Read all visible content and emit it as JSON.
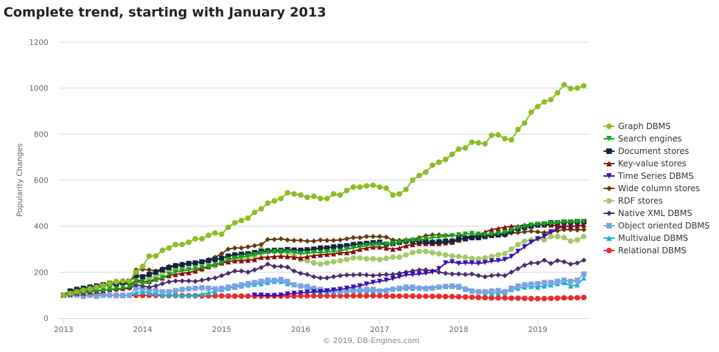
{
  "title": "Complete trend, starting with January 2013",
  "credits": "© 2019, DB-Engines.com",
  "chart_data": {
    "type": "line",
    "title": "Complete trend, starting with January 2013",
    "xlabel": "",
    "ylabel": "Popularity Changes",
    "x_start": "2013-01",
    "x_step": "month",
    "x_ticks": [
      "2013",
      "2014",
      "2015",
      "2016",
      "2017",
      "2018",
      "2019"
    ],
    "y_ticks": [
      0,
      200,
      400,
      600,
      800,
      1000,
      1200
    ],
    "ylim": [
      0,
      1200
    ],
    "grid": "horizontal",
    "legend_position": "right",
    "series": [
      {
        "name": "Graph DBMS",
        "color": "#8cbd23",
        "marker": "circle",
        "values": [
          100,
          108,
          115,
          122,
          128,
          135,
          142,
          150,
          158,
          162,
          160,
          200,
          225,
          270,
          270,
          295,
          305,
          320,
          320,
          330,
          345,
          345,
          360,
          370,
          365,
          395,
          415,
          425,
          435,
          460,
          475,
          500,
          510,
          520,
          545,
          540,
          535,
          525,
          530,
          520,
          520,
          540,
          535,
          555,
          570,
          570,
          575,
          578,
          570,
          565,
          535,
          540,
          560,
          600,
          620,
          635,
          665,
          678,
          690,
          712,
          735,
          740,
          765,
          762,
          758,
          795,
          797,
          780,
          775,
          820,
          848,
          895,
          920,
          940,
          950,
          980,
          1015,
          998,
          1000,
          1010
        ]
      },
      {
        "name": "Search engines",
        "color": "#1aa31a",
        "marker": "triangle-down",
        "values": [
          100,
          105,
          110,
          112,
          115,
          118,
          120,
          125,
          128,
          130,
          135,
          160,
          150,
          155,
          165,
          175,
          190,
          200,
          205,
          210,
          215,
          220,
          225,
          230,
          240,
          255,
          260,
          265,
          270,
          275,
          280,
          285,
          290,
          290,
          288,
          285,
          280,
          282,
          285,
          285,
          288,
          290,
          292,
          300,
          305,
          310,
          315,
          318,
          320,
          322,
          325,
          330,
          335,
          338,
          340,
          345,
          350,
          352,
          355,
          358,
          362,
          365,
          368,
          365,
          362,
          365,
          368,
          372,
          382,
          392,
          398,
          405,
          408,
          410,
          412,
          415,
          418,
          418,
          420,
          420
        ]
      },
      {
        "name": "Document stores",
        "color": "#102640",
        "marker": "square",
        "values": [
          100,
          118,
          125,
          130,
          135,
          140,
          145,
          150,
          148,
          155,
          160,
          185,
          180,
          190,
          200,
          210,
          220,
          228,
          232,
          238,
          240,
          245,
          250,
          255,
          260,
          270,
          275,
          278,
          280,
          285,
          290,
          292,
          295,
          295,
          298,
          296,
          295,
          297,
          300,
          305,
          305,
          310,
          312,
          315,
          320,
          322,
          325,
          328,
          330,
          322,
          325,
          330,
          335,
          335,
          335,
          332,
          330,
          332,
          335,
          335,
          345,
          345,
          350,
          350,
          355,
          360,
          362,
          365,
          380,
          390,
          395,
          400,
          405,
          410,
          415,
          415,
          418,
          418,
          420,
          420
        ]
      },
      {
        "name": "Key-value stores",
        "color": "#8b0a0a",
        "marker": "triangle",
        "values": [
          100,
          105,
          110,
          110,
          115,
          118,
          120,
          125,
          128,
          130,
          135,
          165,
          160,
          160,
          170,
          175,
          185,
          190,
          195,
          198,
          205,
          215,
          225,
          235,
          240,
          245,
          250,
          250,
          252,
          255,
          265,
          265,
          268,
          270,
          268,
          265,
          262,
          268,
          272,
          275,
          278,
          280,
          285,
          285,
          290,
          300,
          305,
          310,
          310,
          305,
          300,
          305,
          315,
          320,
          325,
          325,
          325,
          325,
          328,
          330,
          340,
          350,
          355,
          360,
          375,
          385,
          390,
          395,
          400,
          400,
          405,
          405,
          408,
          405,
          405,
          400,
          400,
          400,
          400,
          405
        ]
      },
      {
        "name": "Time Series DBMS",
        "color": "#3a10b0",
        "marker": "triangle-down",
        "values": [
          null,
          null,
          null,
          null,
          null,
          null,
          null,
          null,
          null,
          null,
          null,
          null,
          null,
          null,
          null,
          null,
          null,
          null,
          null,
          null,
          null,
          null,
          null,
          null,
          null,
          null,
          null,
          null,
          null,
          100,
          100,
          98,
          98,
          100,
          105,
          108,
          110,
          112,
          115,
          115,
          118,
          122,
          125,
          130,
          135,
          140,
          148,
          155,
          160,
          165,
          172,
          180,
          188,
          190,
          192,
          195,
          200,
          215,
          240,
          245,
          238,
          240,
          240,
          238,
          242,
          248,
          250,
          255,
          268,
          290,
          310,
          330,
          345,
          355,
          375,
          390,
          400,
          400,
          400,
          405
        ]
      },
      {
        "name": "Wide column stores",
        "color": "#62390c",
        "marker": "diamond",
        "values": [
          100,
          110,
          115,
          120,
          125,
          130,
          140,
          145,
          150,
          150,
          150,
          210,
          212,
          210,
          205,
          215,
          225,
          230,
          235,
          238,
          240,
          245,
          255,
          265,
          280,
          300,
          305,
          305,
          310,
          315,
          320,
          342,
          342,
          345,
          340,
          338,
          338,
          335,
          335,
          340,
          338,
          338,
          340,
          345,
          350,
          350,
          355,
          355,
          355,
          352,
          340,
          338,
          340,
          342,
          350,
          358,
          362,
          362,
          360,
          360,
          360,
          355,
          355,
          360,
          360,
          362,
          365,
          360,
          370,
          372,
          375,
          378,
          375,
          372,
          375,
          380,
          385,
          385,
          383,
          385
        ]
      },
      {
        "name": "RDF stores",
        "color": "#a3c96a",
        "marker": "circle",
        "values": [
          100,
          110,
          118,
          125,
          130,
          140,
          145,
          155,
          160,
          160,
          155,
          160,
          170,
          170,
          180,
          195,
          205,
          210,
          212,
          215,
          210,
          212,
          222,
          228,
          240,
          255,
          258,
          255,
          262,
          268,
          300,
          295,
          290,
          288,
          285,
          270,
          255,
          250,
          240,
          235,
          240,
          245,
          250,
          255,
          262,
          262,
          258,
          258,
          255,
          260,
          265,
          265,
          275,
          285,
          290,
          290,
          285,
          280,
          275,
          270,
          268,
          265,
          260,
          258,
          262,
          268,
          275,
          280,
          300,
          320,
          335,
          340,
          345,
          340,
          355,
          355,
          350,
          335,
          340,
          355
        ]
      },
      {
        "name": "Native XML DBMS",
        "color": "#4a2c70",
        "marker": "diamond",
        "values": [
          100,
          105,
          110,
          115,
          118,
          120,
          122,
          125,
          125,
          128,
          130,
          145,
          140,
          135,
          140,
          150,
          158,
          162,
          162,
          162,
          160,
          165,
          170,
          175,
          185,
          195,
          205,
          205,
          200,
          210,
          220,
          235,
          225,
          225,
          222,
          205,
          195,
          190,
          180,
          175,
          175,
          180,
          185,
          188,
          188,
          190,
          188,
          185,
          188,
          190,
          190,
          195,
          200,
          205,
          210,
          210,
          205,
          200,
          195,
          192,
          192,
          190,
          192,
          185,
          180,
          185,
          188,
          185,
          200,
          215,
          230,
          240,
          240,
          252,
          238,
          250,
          245,
          235,
          240,
          252
        ]
      },
      {
        "name": "Object oriented DBMS",
        "color": "#7ca3e3",
        "marker": "square",
        "values": [
          100,
          100,
          100,
          95,
          100,
          95,
          100,
          100,
          98,
          100,
          100,
          130,
          130,
          125,
          120,
          115,
          115,
          120,
          125,
          128,
          130,
          132,
          130,
          128,
          130,
          135,
          140,
          145,
          150,
          155,
          160,
          165,
          165,
          168,
          160,
          145,
          140,
          138,
          130,
          125,
          120,
          120,
          115,
          118,
          122,
          122,
          125,
          125,
          118,
          120,
          125,
          130,
          135,
          135,
          130,
          128,
          130,
          135,
          138,
          140,
          138,
          125,
          118,
          115,
          115,
          118,
          120,
          115,
          130,
          140,
          145,
          148,
          150,
          155,
          155,
          160,
          165,
          160,
          165,
          192
        ]
      },
      {
        "name": "Multivalue DBMS",
        "color": "#1fb0cf",
        "marker": "triangle",
        "values": [
          100,
          100,
          100,
          100,
          100,
          110,
          105,
          100,
          98,
          98,
          100,
          110,
          115,
          110,
          105,
          100,
          100,
          100,
          98,
          100,
          100,
          105,
          110,
          115,
          125,
          130,
          135,
          140,
          145,
          148,
          150,
          155,
          160,
          160,
          150,
          145,
          140,
          135,
          120,
          115,
          115,
          115,
          118,
          118,
          120,
          120,
          120,
          118,
          120,
          125,
          128,
          128,
          130,
          130,
          132,
          135,
          135,
          135,
          138,
          138,
          135,
          132,
          120,
          115,
          112,
          108,
          110,
          112,
          125,
          130,
          135,
          138,
          135,
          140,
          145,
          150,
          155,
          140,
          145,
          175
        ]
      },
      {
        "name": "Relational DBMS",
        "color": "#f0282a",
        "marker": "circle",
        "values": [
          100,
          100,
          100,
          100,
          100,
          100,
          100,
          100,
          100,
          100,
          99,
          99,
          99,
          99,
          99,
          98,
          98,
          98,
          98,
          98,
          97,
          97,
          97,
          97,
          97,
          96,
          96,
          96,
          96,
          96,
          96,
          96,
          96,
          96,
          96,
          96,
          97,
          97,
          97,
          97,
          97,
          97,
          97,
          97,
          97,
          97,
          97,
          97,
          97,
          96,
          96,
          96,
          96,
          96,
          95,
          95,
          95,
          95,
          94,
          94,
          93,
          92,
          91,
          90,
          89,
          88,
          88,
          88,
          87,
          87,
          86,
          85,
          85,
          85,
          86,
          87,
          88,
          88,
          89,
          90
        ]
      }
    ]
  }
}
